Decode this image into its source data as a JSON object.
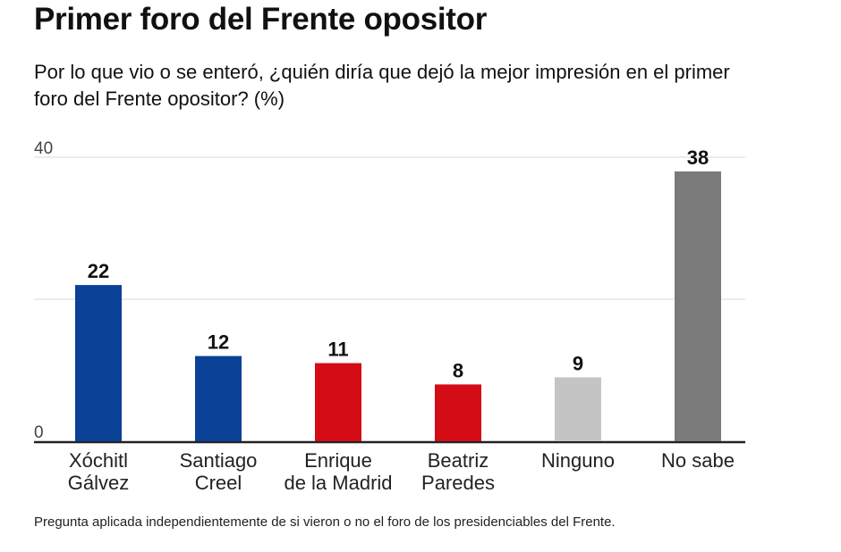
{
  "header": {
    "title": "Primer foro del Frente opositor",
    "subtitle": "Por lo que vio o se enteró, ¿quién diría que dejó la mejor impresión en el primer foro del Frente opositor? (%)"
  },
  "footer": {
    "note": "Pregunta aplicada independientemente de si vieron o no el foro de los presidenciables del Frente."
  },
  "chart_data": {
    "type": "bar",
    "title": "",
    "xlabel": "",
    "ylabel": "",
    "ylim": [
      0,
      40
    ],
    "y_ticks": [
      {
        "value": 0,
        "label": "0"
      },
      {
        "value": 20,
        "label": ""
      },
      {
        "value": 40,
        "label": "40"
      }
    ],
    "grid": true,
    "legend": "none",
    "categories": [
      [
        "Xóchitl",
        "Gálvez"
      ],
      [
        "Santiago",
        "Creel"
      ],
      [
        "Enrique",
        "de la Madrid"
      ],
      [
        "Beatriz",
        "Paredes"
      ],
      [
        "Ninguno"
      ],
      [
        "No sabe"
      ]
    ],
    "values": [
      22,
      12,
      11,
      8,
      9,
      38
    ],
    "value_labels": [
      "22",
      "12",
      "11",
      "8",
      "9",
      "38"
    ],
    "colors": [
      "#0b4196",
      "#0b4196",
      "#d30c16",
      "#d30c16",
      "#c4c4c4",
      "#7a7a7a"
    ],
    "gridline_color": "#d9d9d9",
    "axis_color": "#222222"
  }
}
